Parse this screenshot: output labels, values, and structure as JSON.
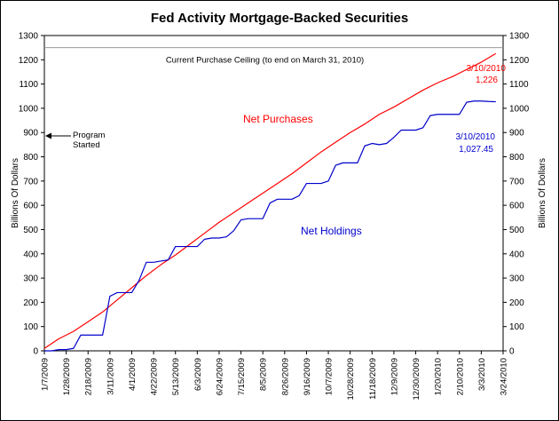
{
  "chart_data": {
    "type": "line",
    "title": "Fed Activity Mortgage-Backed Securities",
    "ylabel_left": "Billions Of Dollars",
    "ylabel_right": "Billions Of Dollars",
    "ylim": [
      0,
      1300
    ],
    "yticks": [
      0,
      100,
      200,
      300,
      400,
      500,
      600,
      700,
      800,
      900,
      1000,
      1100,
      1200,
      1300
    ],
    "xticks": [
      "1/7/2009",
      "1/28/2009",
      "2/18/2009",
      "3/11/2009",
      "4/1/2009",
      "4/22/2009",
      "5/13/2009",
      "6/3/2009",
      "6/24/2009",
      "7/15/2009",
      "8/5/2009",
      "8/26/2009",
      "9/16/2009",
      "10/7/2009",
      "10/28/2009",
      "11/18/2009",
      "12/9/2009",
      "12/30/2009",
      "1/20/2010",
      "2/10/2010",
      "3/3/2010",
      "3/24/2010"
    ],
    "ceiling": {
      "value": 1250,
      "label": "Current Purchase Ceiling (to end on March 31, 2010)"
    },
    "series": [
      {
        "name": "Net Purchases",
        "color": "#ff0000",
        "x": [
          0,
          2,
          4,
          6,
          8,
          10,
          12,
          14,
          16,
          18,
          20,
          22,
          24,
          26,
          28,
          30,
          32,
          34,
          36,
          38,
          40,
          42,
          44,
          46,
          48,
          50,
          52,
          54,
          56,
          58,
          60,
          62
        ],
        "values": [
          10,
          50,
          80,
          120,
          160,
          210,
          260,
          310,
          355,
          395,
          440,
          485,
          530,
          570,
          610,
          650,
          690,
          730,
          775,
          820,
          860,
          900,
          935,
          975,
          1005,
          1040,
          1075,
          1105,
          1130,
          1160,
          1190,
          1226
        ]
      },
      {
        "name": "Net Holdings",
        "color": "#0000cc",
        "x": [
          0,
          1,
          2,
          3,
          4,
          5,
          6,
          7,
          8,
          9,
          10,
          11,
          12,
          13,
          14,
          15,
          16,
          17,
          18,
          19,
          20,
          21,
          22,
          23,
          24,
          25,
          26,
          27,
          28,
          29,
          30,
          31,
          32,
          33,
          34,
          35,
          36,
          37,
          38,
          39,
          40,
          41,
          42,
          43,
          44,
          45,
          46,
          47,
          48,
          49,
          50,
          51,
          52,
          53,
          54,
          55,
          56,
          57,
          58,
          59,
          60,
          61,
          62
        ],
        "values": [
          0,
          0,
          5,
          5,
          10,
          65,
          65,
          65,
          65,
          225,
          240,
          240,
          240,
          290,
          365,
          365,
          370,
          375,
          430,
          430,
          430,
          430,
          460,
          465,
          465,
          470,
          495,
          540,
          545,
          545,
          545,
          610,
          625,
          625,
          625,
          640,
          690,
          690,
          690,
          700,
          765,
          775,
          775,
          775,
          845,
          855,
          850,
          855,
          880,
          910,
          910,
          910,
          920,
          970,
          975,
          975,
          975,
          975,
          1025,
          1030,
          1030,
          1028,
          1027
        ]
      }
    ],
    "annotations": {
      "program_started": "Program Started",
      "net_purchases_label": "Net Purchases",
      "net_holdings_label": "Net Holdings",
      "purchases_date": "3/10/2010",
      "purchases_value": "1,226",
      "holdings_date": "3/10/2010",
      "holdings_value": "1,027.45"
    }
  }
}
